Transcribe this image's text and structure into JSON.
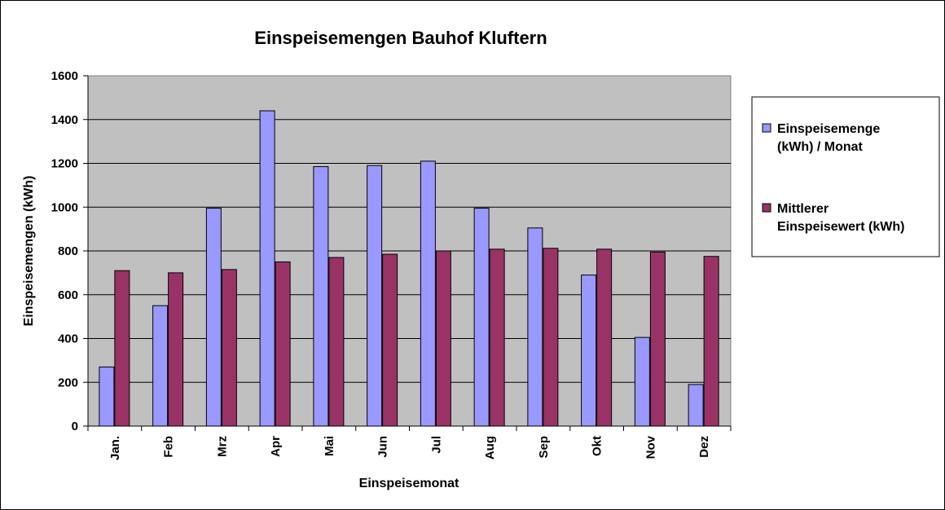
{
  "chart_data": {
    "type": "bar",
    "title": "Einspeisemengen Bauhof Kluftern",
    "xlabel": "Einspeisemonat",
    "ylabel": "Einspeisemengen (kWh)",
    "ylim": [
      0,
      1600
    ],
    "yticks": [
      0,
      200,
      400,
      600,
      800,
      1000,
      1200,
      1400,
      1600
    ],
    "categories": [
      "Jan.",
      "Feb",
      "Mrz",
      "Apr",
      "Mai",
      "Jun",
      "Jul",
      "Aug",
      "Sep",
      "Okt",
      "Nov",
      "Dez"
    ],
    "series": [
      {
        "name": "Einspeisemenge (kWh) / Monat",
        "name_lines": [
          "Einspeisemenge",
          "(kWh) / Monat"
        ],
        "color": "#9999ff",
        "values": [
          270,
          550,
          995,
          1440,
          1185,
          1190,
          1210,
          995,
          905,
          690,
          405,
          190
        ]
      },
      {
        "name": "Mittlerer Einspeisewert (kWh)",
        "name_lines": [
          "Mittlerer",
          "Einspeisewert (kWh)"
        ],
        "color": "#993366",
        "values": [
          710,
          700,
          715,
          750,
          770,
          785,
          800,
          808,
          812,
          808,
          795,
          775
        ]
      }
    ],
    "plot_background": "#c0c0c0",
    "grid": true,
    "legend_position": "right"
  }
}
